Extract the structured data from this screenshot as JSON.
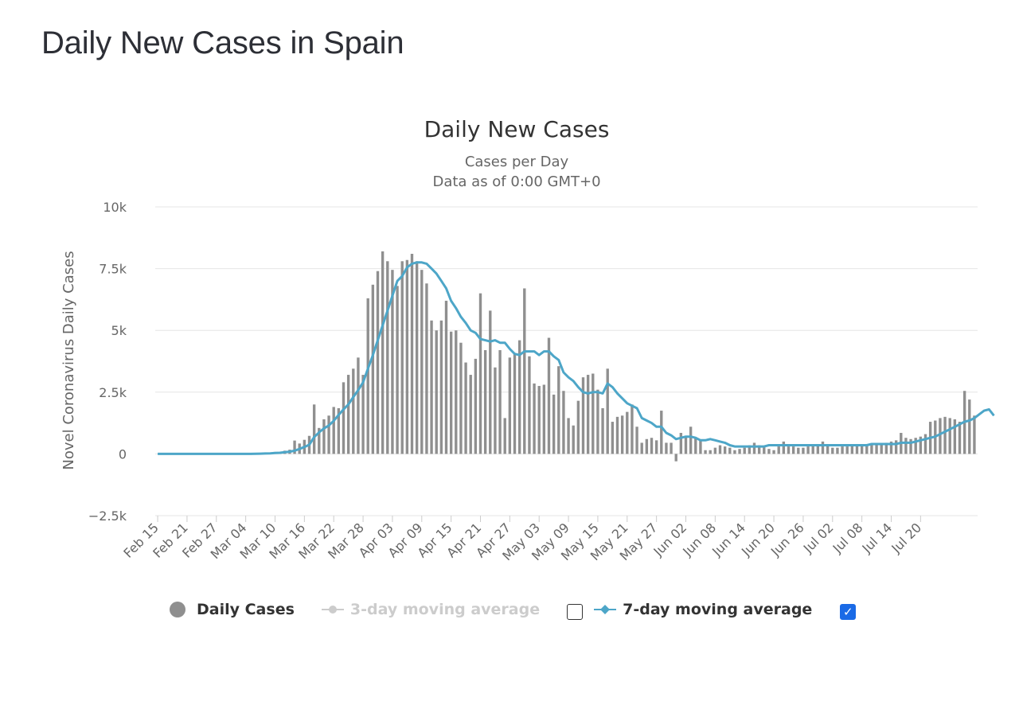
{
  "page": {
    "title": "Daily New Cases in Spain"
  },
  "legend": {
    "daily_label": "Daily Cases",
    "avg3_label": "3-day moving average",
    "avg7_label": "7-day moving average",
    "avg3_checked": false,
    "avg7_checked": true,
    "checkmark": "✓"
  },
  "colors": {
    "bars": "#8f8f8f",
    "avg7": "#4da6c8",
    "avg3_disabled": "#cccccc",
    "grid": "#e6e6e6",
    "checkbox": "#1a6ae6"
  },
  "chart_data": {
    "type": "bar",
    "title": "Daily New Cases",
    "subtitle_lines": [
      "Cases per Day",
      "Data as of 0:00 GMT+0"
    ],
    "ylabel": "Novel Coronavirus Daily Cases",
    "ylim": [
      -2500,
      10000
    ],
    "yticks": [
      {
        "value": -2500,
        "label": "−2.5k"
      },
      {
        "value": 0,
        "label": "0"
      },
      {
        "value": 2500,
        "label": "2.5k"
      },
      {
        "value": 5000,
        "label": "5k"
      },
      {
        "value": 7500,
        "label": "7.5k"
      },
      {
        "value": 10000,
        "label": "10k"
      }
    ],
    "grid": true,
    "x_start": "Feb 15",
    "x_end": "Jul 25",
    "xtick_labels": [
      "Feb 15",
      "Feb 21",
      "Feb 27",
      "Mar 04",
      "Mar 10",
      "Mar 16",
      "Mar 22",
      "Mar 28",
      "Apr 03",
      "Apr 09",
      "Apr 15",
      "Apr 21",
      "Apr 27",
      "May 03",
      "May 09",
      "May 15",
      "May 21",
      "May 27",
      "Jun 02",
      "Jun 08",
      "Jun 14",
      "Jun 20",
      "Jun 26",
      "Jul 02",
      "Jul 08",
      "Jul 14",
      "Jul 20"
    ],
    "series": [
      {
        "name": "Daily Cases",
        "kind": "bar",
        "values": [
          0,
          0,
          0,
          0,
          0,
          0,
          0,
          0,
          0,
          0,
          0,
          0,
          0,
          0,
          0,
          0,
          2,
          0,
          6,
          5,
          10,
          25,
          35,
          40,
          80,
          70,
          130,
          170,
          540,
          420,
          570,
          730,
          2000,
          1050,
          1400,
          1550,
          1900,
          1850,
          2900,
          3200,
          3450,
          3900,
          3200,
          6300,
          6850,
          7400,
          8200,
          7800,
          7450,
          6800,
          7800,
          7850,
          8100,
          7800,
          7450,
          6900,
          5400,
          5000,
          5400,
          6200,
          4950,
          5000,
          4500,
          3700,
          3200,
          3850,
          6500,
          4200,
          5800,
          3500,
          4200,
          1450,
          3900,
          4050,
          4600,
          6700,
          3950,
          2850,
          2750,
          2800,
          4700,
          2400,
          3550,
          2550,
          1450,
          1150,
          2150,
          3100,
          3200,
          3250,
          2600,
          1850,
          3450,
          1300,
          1500,
          1550,
          1700,
          2000,
          1100,
          450,
          600,
          650,
          550,
          1750,
          450,
          450,
          -300,
          850,
          700,
          1100,
          650,
          550,
          150,
          150,
          250,
          350,
          300,
          250,
          150,
          200,
          250,
          350,
          450,
          350,
          300,
          200,
          150,
          300,
          500,
          300,
          300,
          250,
          250,
          300,
          350,
          400,
          500,
          350,
          250,
          250,
          300,
          300,
          350,
          400,
          350,
          400,
          350,
          400,
          400,
          450,
          500,
          550,
          850,
          650,
          600,
          650,
          700,
          800,
          1300,
          1350,
          1450,
          1500,
          1450,
          1400,
          1300,
          2550,
          2200,
          1550
        ]
      },
      {
        "name": "7-day moving average",
        "kind": "line",
        "values": [
          0,
          0,
          0,
          0,
          0,
          0,
          0,
          0,
          0,
          0,
          0,
          0,
          0,
          0,
          0,
          0,
          0,
          0,
          0,
          0,
          5,
          10,
          15,
          20,
          35,
          45,
          70,
          90,
          130,
          200,
          280,
          370,
          680,
          870,
          1030,
          1150,
          1340,
          1580,
          1800,
          2000,
          2300,
          2580,
          2900,
          3450,
          4000,
          4600,
          5200,
          5800,
          6400,
          7000,
          7200,
          7550,
          7700,
          7750,
          7750,
          7700,
          7500,
          7300,
          7000,
          6700,
          6200,
          5900,
          5550,
          5300,
          5000,
          4900,
          4650,
          4600,
          4550,
          4600,
          4500,
          4500,
          4250,
          4050,
          4000,
          4150,
          4150,
          4150,
          4000,
          4150,
          4150,
          3950,
          3800,
          3300,
          3100,
          2950,
          2700,
          2500,
          2450,
          2500,
          2500,
          2450,
          2850,
          2700,
          2450,
          2250,
          2050,
          1950,
          1850,
          1450,
          1350,
          1250,
          1100,
          1100,
          850,
          750,
          600,
          650,
          700,
          700,
          650,
          550,
          550,
          600,
          550,
          500,
          450,
          350,
          300,
          300,
          300,
          300,
          300,
          300,
          300,
          350,
          350,
          350,
          350,
          350,
          350,
          350,
          350,
          350,
          350,
          350,
          350,
          350,
          350,
          350,
          350,
          350,
          350,
          350,
          350,
          350,
          400,
          400,
          400,
          400,
          400,
          400,
          450,
          450,
          450,
          500,
          550,
          600,
          650,
          700,
          800,
          900,
          1000,
          1100,
          1200,
          1300,
          1350,
          1450,
          1600,
          1750,
          1800,
          1550
        ]
      }
    ]
  }
}
